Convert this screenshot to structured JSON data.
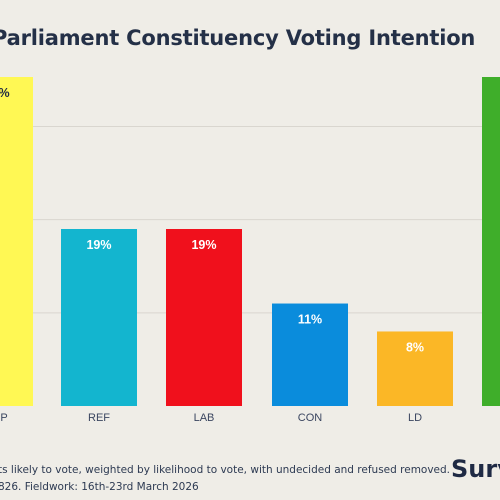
{
  "title": "Parliament Constituency Voting Intention",
  "footnote_line1": "ts likely to vote, weighted by likelihood to vote, with undecided and refused removed.",
  "footnote_line2": "826. Fieldwork: 16th-23rd March 2026",
  "logo_text": "Surv",
  "chart_data": {
    "type": "bar",
    "title": "Parliament Constituency Voting Intention",
    "categories": [
      "P",
      "REF",
      "LAB",
      "CON",
      "LD",
      ""
    ],
    "values": [
      null,
      19,
      19,
      11,
      8,
      null
    ],
    "data_labels": [
      "%",
      "19%",
      "19%",
      "11%",
      "8%",
      ""
    ],
    "colors": [
      "#fff854",
      "#13b5cf",
      "#f0101c",
      "#0a8cdc",
      "#fbb726",
      "#3fae2a"
    ],
    "ylim": [
      0,
      40
    ],
    "grid": true,
    "legend": "none",
    "note": "First and last bars are only partially visible (cropped)"
  }
}
